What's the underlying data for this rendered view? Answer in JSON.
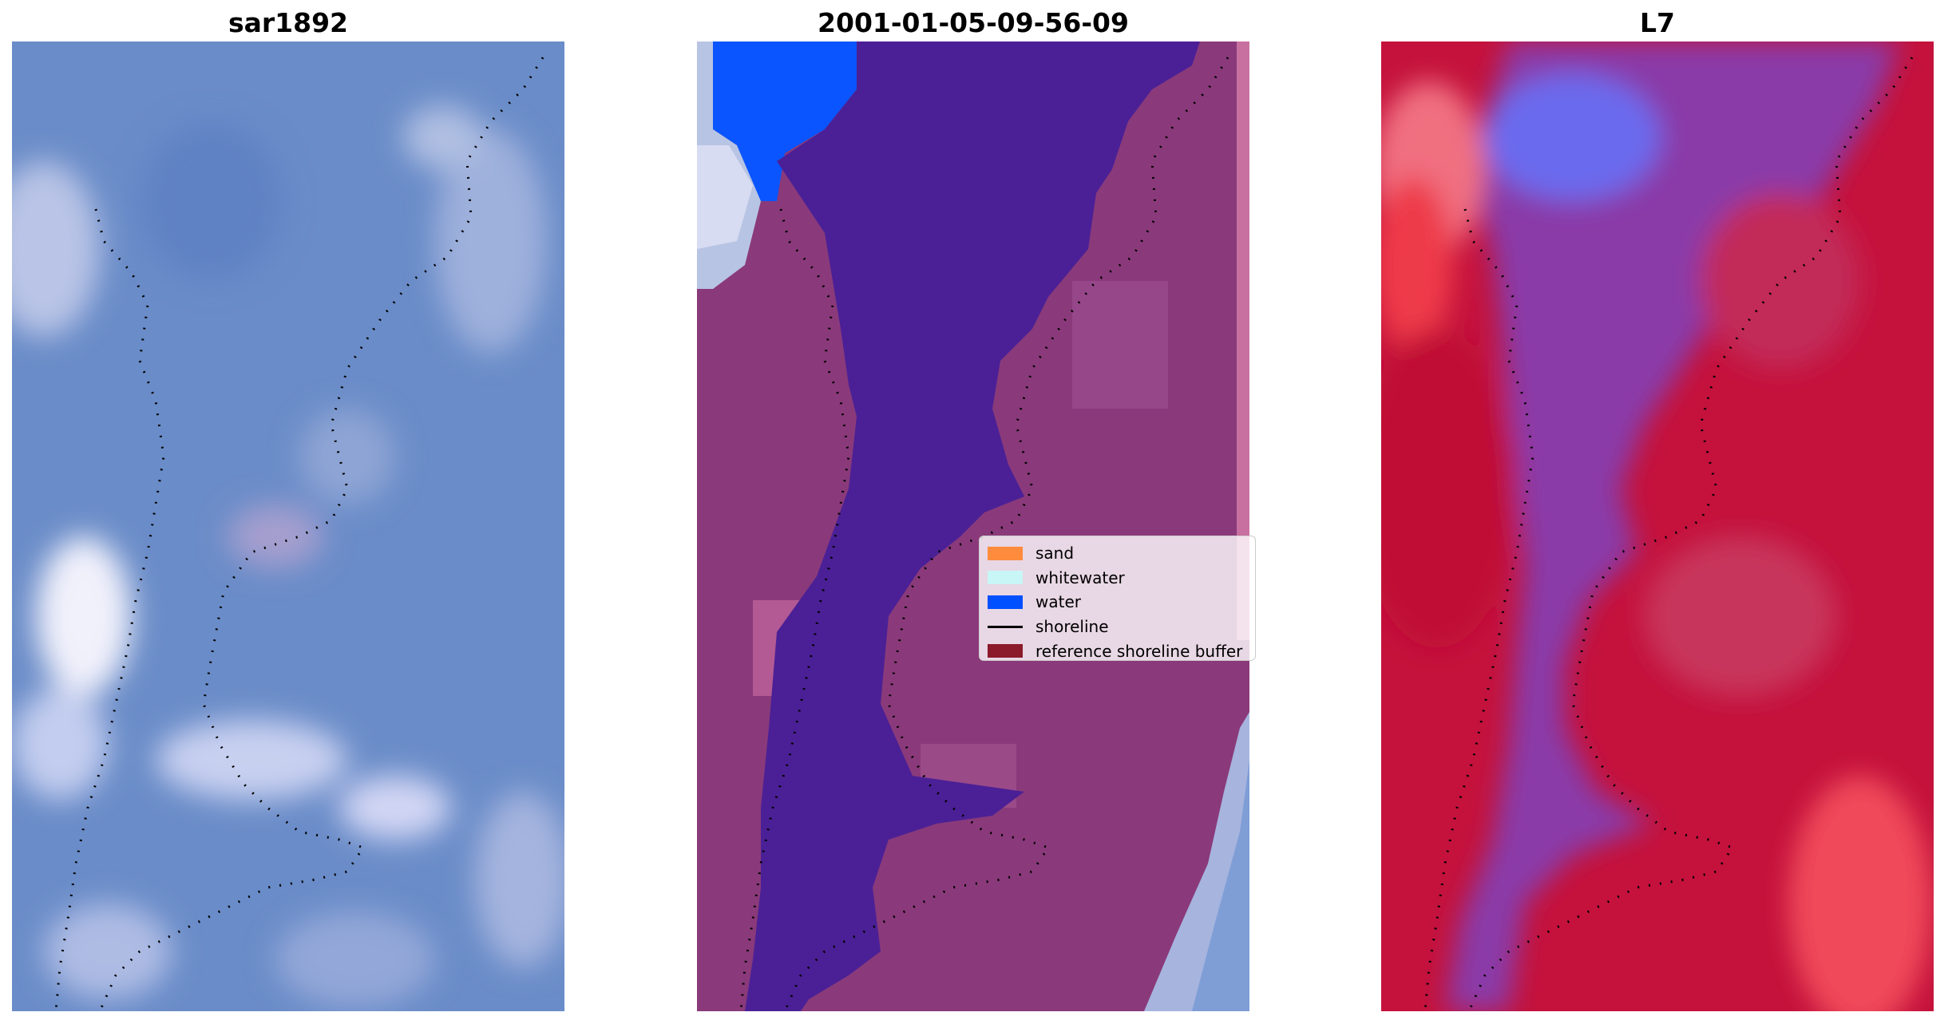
{
  "panels": [
    {
      "title": "sar1892"
    },
    {
      "title": "2001-01-05-09-56-09"
    },
    {
      "title": "L7"
    }
  ],
  "legend": {
    "items": [
      {
        "label": "sand",
        "kind": "patch",
        "color": "#ff8c3c"
      },
      {
        "label": "whitewater",
        "kind": "patch",
        "color": "#c8f5f5"
      },
      {
        "label": "water",
        "kind": "patch",
        "color": "#0050ff"
      },
      {
        "label": "shoreline",
        "kind": "line",
        "color": "#000000"
      },
      {
        "label": "reference shoreline buffer",
        "kind": "patch",
        "color": "#8b1a2a"
      }
    ]
  },
  "colors": {
    "rgb_base": "#6a8cc8",
    "rgb_light": "#c8d2ee",
    "rgb_white": "#f5f5fb",
    "class_land": "#8a3a7a",
    "class_water_body": "#4b2096",
    "class_water_patch": "#0a55ff",
    "class_strip": "#c870a0",
    "ndwi_red": "#c4123c",
    "ndwi_purple": "#8a3aa8",
    "ndwi_blue": "#6a6aee",
    "shoreline_dots": "#000000"
  }
}
